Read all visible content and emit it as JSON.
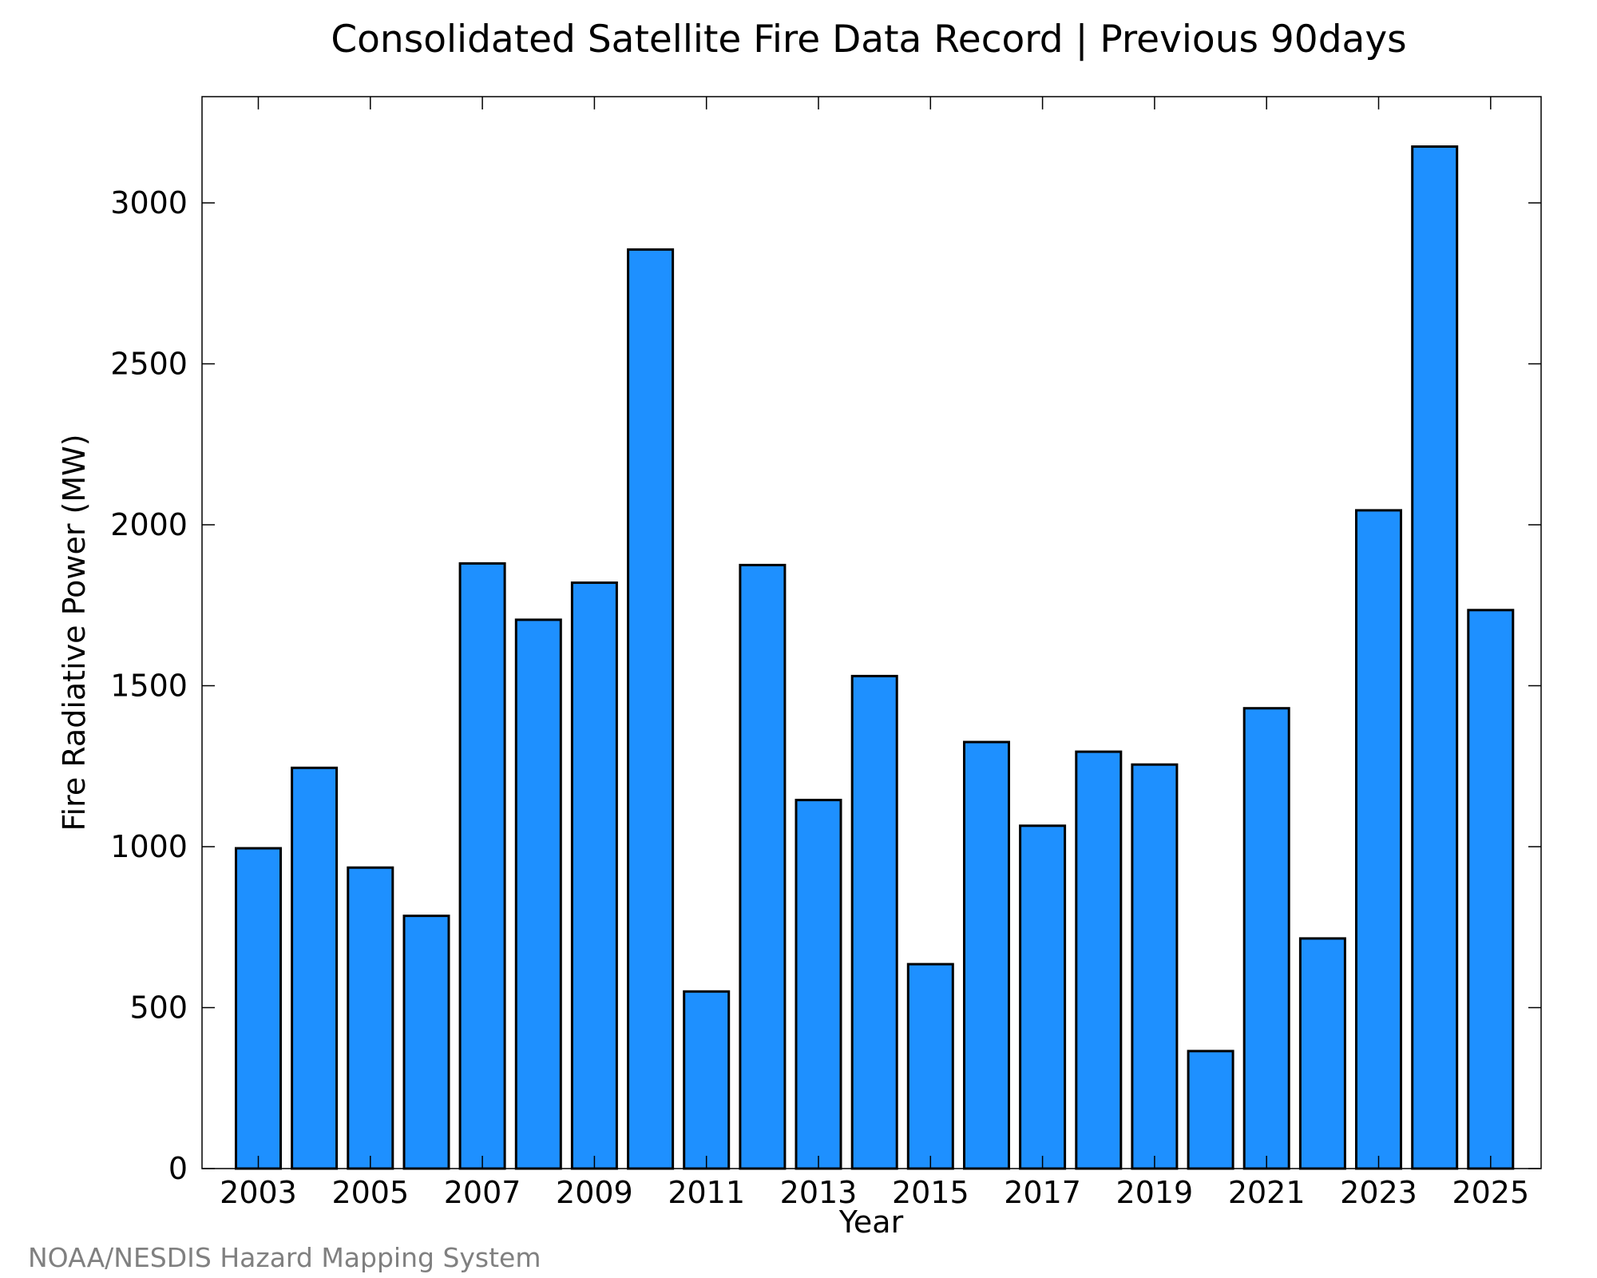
{
  "chart_data": {
    "type": "bar",
    "title": "Consolidated Satellite Fire Data Record | Previous 90days",
    "xlabel": "Year",
    "ylabel": "Fire Radiative Power (MW)",
    "ylim": [
      0,
      3330
    ],
    "categories": [
      "2003",
      "2004",
      "2005",
      "2006",
      "2007",
      "2008",
      "2009",
      "2010",
      "2011",
      "2012",
      "2013",
      "2014",
      "2015",
      "2016",
      "2017",
      "2018",
      "2019",
      "2020",
      "2021",
      "2022",
      "2023",
      "2024",
      "2025"
    ],
    "values": [
      995,
      1245,
      935,
      785,
      1880,
      1705,
      1820,
      2855,
      550,
      1875,
      1145,
      1530,
      635,
      1325,
      1065,
      1295,
      1255,
      365,
      1430,
      715,
      2045,
      3175,
      1735
    ],
    "x_tick_labels": [
      "2003",
      "2005",
      "2007",
      "2009",
      "2011",
      "2013",
      "2015",
      "2017",
      "2019",
      "2021",
      "2023",
      "2025"
    ],
    "y_tick_labels": [
      "0",
      "500",
      "1000",
      "1500",
      "2000",
      "2500",
      "3000"
    ],
    "y_ticks": [
      0,
      500,
      1000,
      1500,
      2000,
      2500,
      3000
    ],
    "grid": false,
    "legend": "none",
    "bar_color": "#1E90FF",
    "bar_edge_color": "#000000"
  },
  "source": "NOAA/NESDIS Hazard Mapping System"
}
